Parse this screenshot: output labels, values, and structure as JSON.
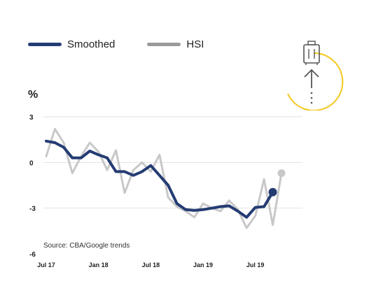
{
  "chart_data": {
    "type": "line",
    "ylabel": "%",
    "ylim": [
      -6,
      3
    ],
    "yticks": [
      "3",
      "0",
      "-3",
      "-6"
    ],
    "xticks": [
      "Jul 17",
      "Jan 18",
      "Jul 18",
      "Jan 19",
      "Jul 19"
    ],
    "x": [
      "Jul 17",
      "Aug 17",
      "Sep 17",
      "Oct 17",
      "Nov 17",
      "Dec 17",
      "Jan 18",
      "Feb 18",
      "Mar 18",
      "Apr 18",
      "May 18",
      "Jun 18",
      "Jul 18",
      "Aug 18",
      "Sep 18",
      "Oct 18",
      "Nov 18",
      "Dec 18",
      "Jan 19",
      "Feb 19",
      "Mar 19",
      "Apr 19",
      "May 19",
      "Jun 19",
      "Jul 19",
      "Aug 19",
      "Sep 19",
      "Oct 19"
    ],
    "legend_position": "top-left",
    "series": [
      {
        "name": "Smoothed",
        "color": "#243c73",
        "values": [
          1.4,
          1.3,
          1.0,
          0.3,
          0.3,
          0.75,
          0.5,
          0.3,
          -0.6,
          -0.6,
          -0.85,
          -0.6,
          -0.2,
          -0.85,
          -1.5,
          -2.7,
          -3.1,
          -3.15,
          -3.1,
          -3.0,
          -2.9,
          -2.85,
          -3.2,
          -3.6,
          -2.95,
          -2.9,
          -1.95,
          null
        ]
      },
      {
        "name": "HSI",
        "color": "#c8c8c8",
        "values": [
          0.4,
          2.2,
          1.3,
          -0.7,
          0.4,
          1.3,
          0.7,
          -0.5,
          0.8,
          -2.0,
          -0.5,
          0.0,
          -0.6,
          0.5,
          -2.3,
          -2.9,
          -3.2,
          -3.6,
          -2.7,
          -3.0,
          -3.2,
          -2.5,
          -3.1,
          -4.3,
          -3.5,
          -1.1,
          -4.1,
          -0.7
        ]
      }
    ],
    "source": "Source: CBA/Google trends",
    "grid": true
  },
  "icon": {
    "name": "suitcase-upward-arrow-icon",
    "accent": "#f2c81e"
  }
}
